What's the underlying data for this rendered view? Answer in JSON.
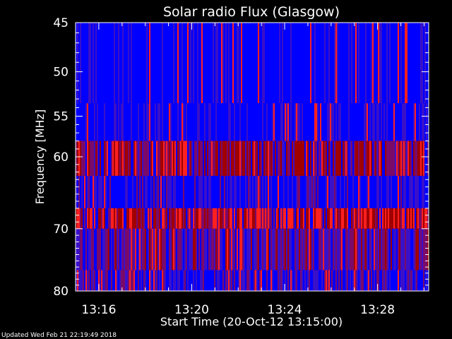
{
  "chart_data": {
    "type": "heatmap",
    "title": "Solar radio Flux (Glasgow)",
    "xlabel": "Start Time (20-Oct-12 13:15:00)",
    "ylabel": "Frequency [MHz]",
    "x_tick_labels": [
      "13:16",
      "13:20",
      "13:24",
      "13:28"
    ],
    "x_tick_minutes": [
      1,
      5,
      9,
      13
    ],
    "x_range_minutes": [
      0,
      15.2
    ],
    "y_tick_labels": [
      "45",
      "50",
      "55",
      "60",
      "70",
      "80"
    ],
    "y_tick_values": [
      45,
      50,
      55,
      60,
      70,
      80
    ],
    "y_scale": "log",
    "ylim": [
      45,
      80
    ],
    "legend": "none",
    "colormap": [
      "#0000ff",
      "#3a10c8",
      "#7a0a6a",
      "#a00000",
      "#ff2020"
    ],
    "bands": [
      {
        "f_low": 45,
        "f_high": 53.5,
        "intensity": 0.05
      },
      {
        "f_low": 53.5,
        "f_high": 58,
        "intensity": 0.15
      },
      {
        "f_low": 58,
        "f_high": 62.5,
        "intensity": 0.6
      },
      {
        "f_low": 62.5,
        "f_high": 67,
        "intensity": 0.2
      },
      {
        "f_low": 67,
        "f_high": 70,
        "intensity": 0.75
      },
      {
        "f_low": 70,
        "f_high": 76.5,
        "intensity": 0.45
      },
      {
        "f_low": 76.5,
        "f_high": 80,
        "intensity": 0.3
      }
    ]
  },
  "footer": {
    "updated": "Updated Wed Feb 21 22:19:49 2018"
  },
  "colors": {
    "background": "#000000",
    "axes": "#ffffff",
    "text": "#ffffff"
  }
}
